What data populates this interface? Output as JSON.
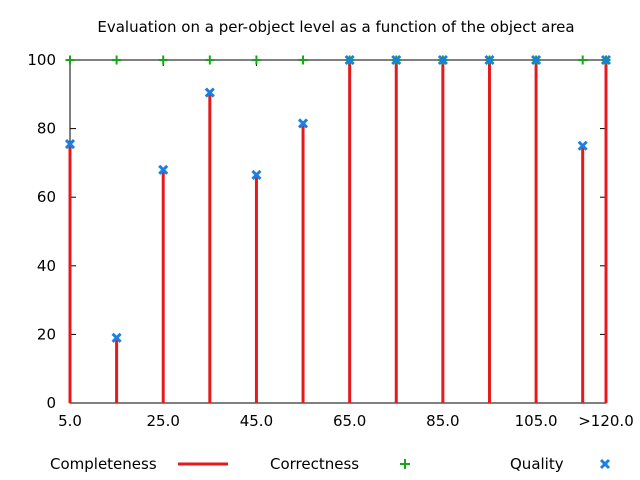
{
  "chart_data": {
    "type": "bar",
    "title": "Evaluation on a per-object level as a function of the object area",
    "xlabel": "",
    "ylabel": "",
    "ylim": [
      0,
      100
    ],
    "yticks": [
      0,
      20,
      40,
      60,
      80,
      100
    ],
    "x": [
      5,
      15,
      25,
      35,
      45,
      55,
      65,
      75,
      85,
      95,
      105,
      115,
      120
    ],
    "xlim": [
      5,
      120
    ],
    "xtick_labels": [
      {
        "x": 5,
        "label": "5.0"
      },
      {
        "x": 25,
        "label": "25.0"
      },
      {
        "x": 45,
        "label": "45.0"
      },
      {
        "x": 65,
        "label": "65.0"
      },
      {
        "x": 85,
        "label": "85.0"
      },
      {
        "x": 105,
        "label": "105.0"
      },
      {
        "x": 120,
        "label": ">120.0"
      }
    ],
    "grid": false,
    "legend_position": "bottom",
    "series": [
      {
        "name": "Completeness",
        "style": "impulses",
        "color": "#e41a1c",
        "values": [
          75.5,
          19,
          68,
          90.5,
          66.5,
          81.5,
          100,
          100,
          100,
          100,
          100,
          75,
          100
        ]
      },
      {
        "name": "Correctness",
        "style": "points-plus",
        "color": "#1aa31a",
        "values": [
          100,
          100,
          100,
          100,
          100,
          100,
          100,
          100,
          100,
          100,
          100,
          100,
          100
        ]
      },
      {
        "name": "Quality",
        "style": "points-cross",
        "color": "#1a7fe5",
        "values": [
          75.5,
          19,
          68,
          90.5,
          66.5,
          81.5,
          100,
          100,
          100,
          100,
          100,
          75,
          100
        ]
      }
    ]
  }
}
